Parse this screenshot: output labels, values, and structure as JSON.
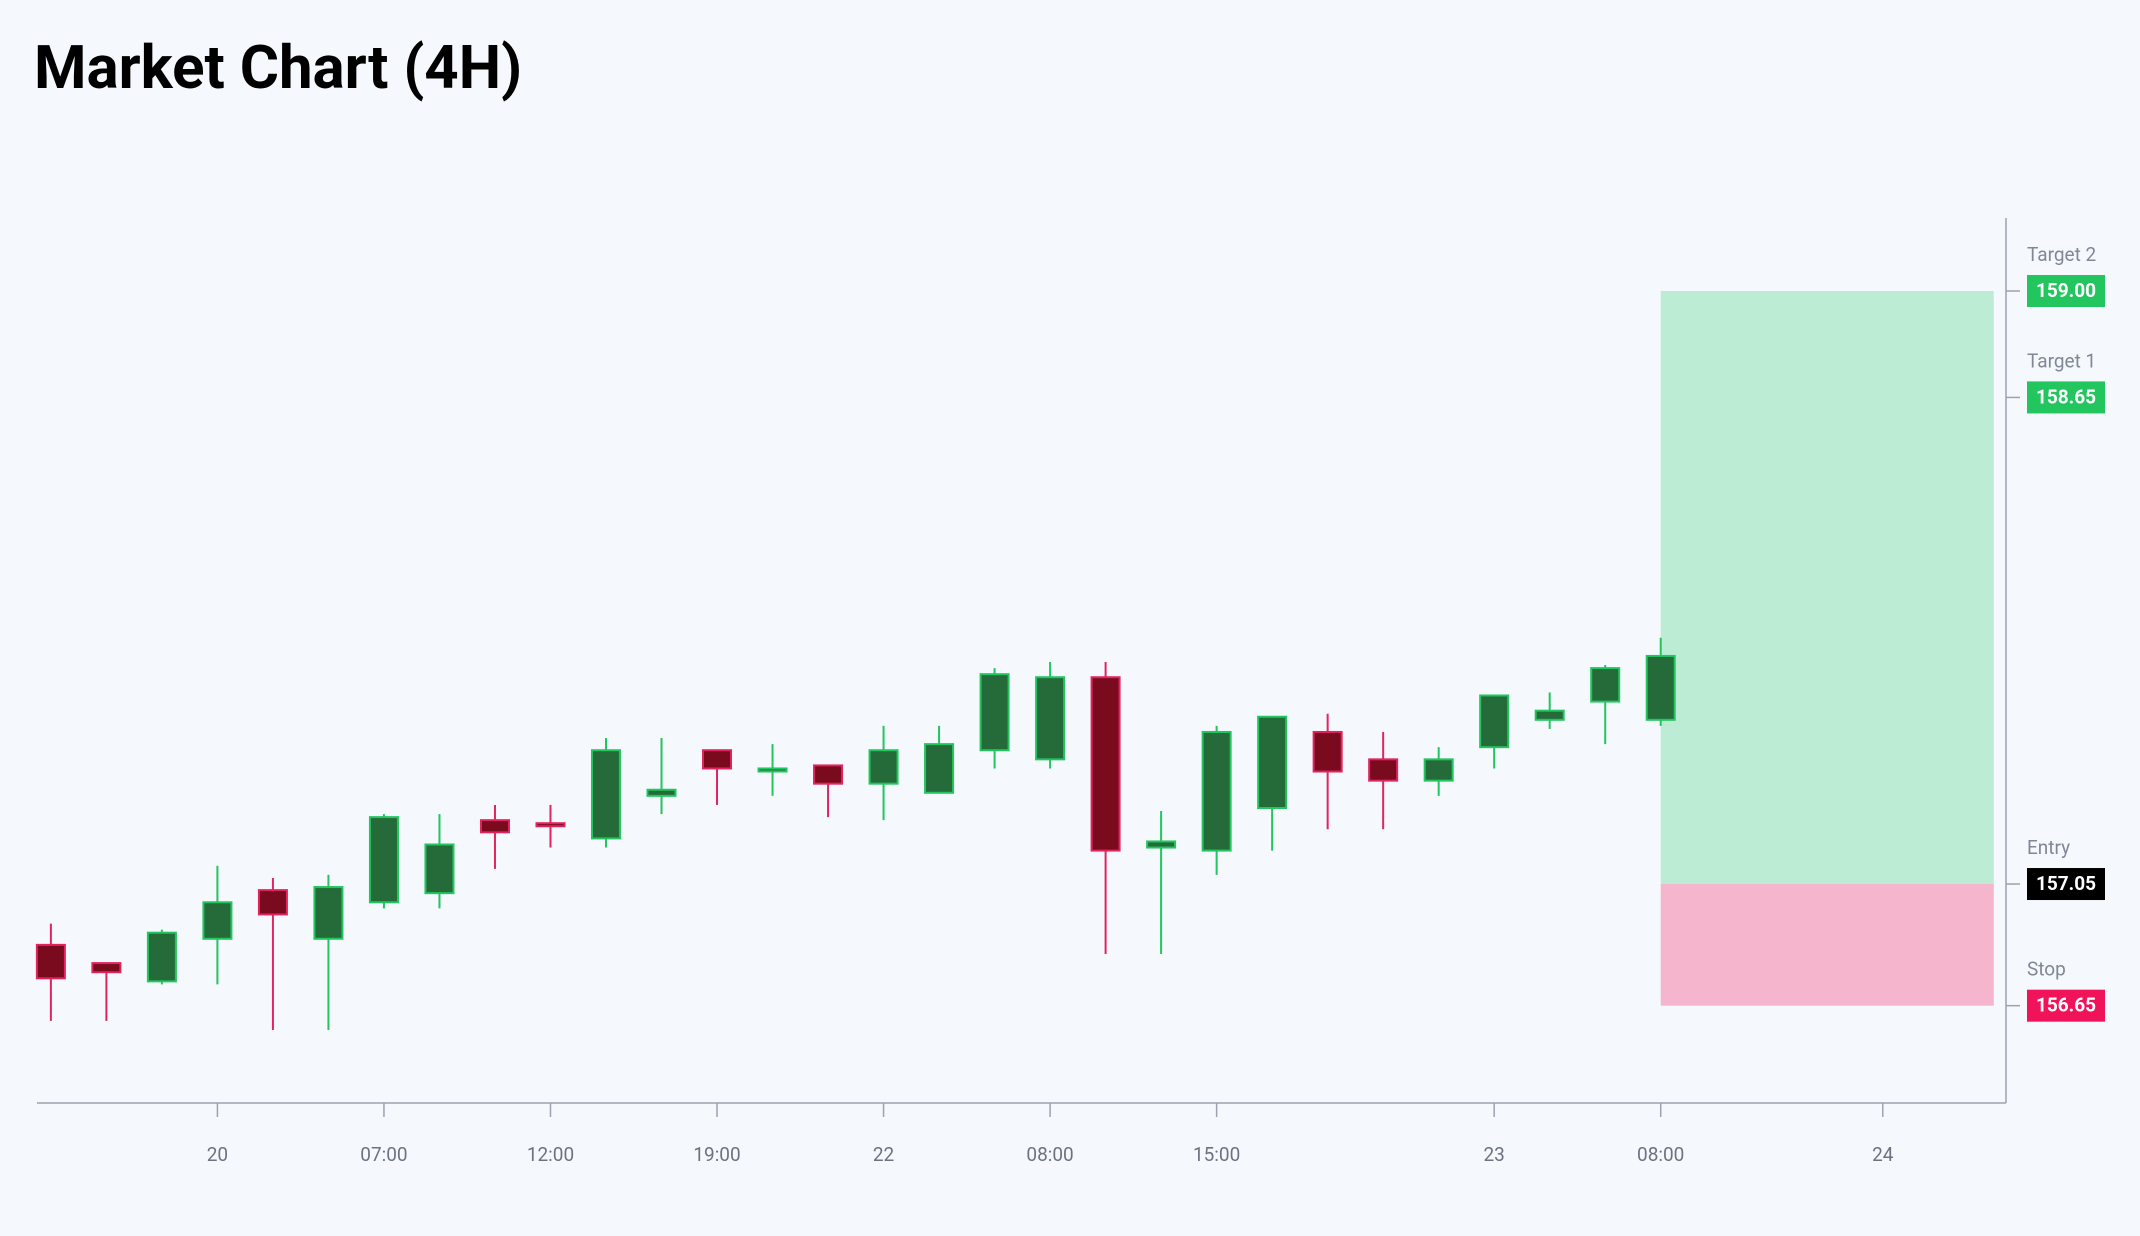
{
  "chart_data": {
    "type": "candlestick",
    "title": "Market Chart (4H)",
    "x": [
      0,
      1,
      2,
      3,
      4,
      5,
      6,
      7,
      8,
      9,
      10,
      11,
      12,
      13,
      14,
      15,
      16,
      17,
      18,
      19,
      20,
      21,
      22,
      23,
      24,
      25,
      26,
      27,
      28,
      29
    ],
    "open": [
      156.85,
      156.79,
      156.73,
      156.87,
      157.03,
      156.87,
      156.99,
      157.02,
      157.26,
      157.25,
      157.2,
      157.34,
      157.49,
      157.42,
      157.44,
      157.38,
      157.35,
      157.49,
      157.46,
      157.73,
      157.17,
      157.16,
      157.3,
      157.55,
      157.46,
      157.39,
      157.5,
      157.59,
      157.65,
      157.59
    ],
    "high": [
      156.92,
      156.79,
      156.9,
      157.11,
      157.07,
      157.08,
      157.28,
      157.28,
      157.31,
      157.31,
      157.53,
      157.53,
      157.49,
      157.51,
      157.44,
      157.57,
      157.57,
      157.76,
      157.78,
      157.78,
      157.29,
      157.57,
      157.6,
      157.61,
      157.55,
      157.5,
      157.67,
      157.68,
      157.77,
      157.86
    ],
    "low": [
      156.6,
      156.6,
      156.72,
      156.72,
      156.57,
      156.57,
      156.97,
      156.97,
      157.1,
      157.17,
      157.17,
      157.28,
      157.31,
      157.34,
      157.27,
      157.26,
      157.35,
      157.43,
      157.43,
      156.82,
      156.82,
      157.08,
      157.16,
      157.23,
      157.23,
      157.34,
      157.43,
      157.56,
      157.51,
      157.57
    ],
    "close": [
      156.74,
      156.76,
      156.89,
      156.99,
      156.95,
      157.04,
      157.27,
      157.18,
      157.22,
      157.24,
      157.49,
      157.36,
      157.43,
      157.43,
      157.38,
      157.49,
      157.51,
      157.74,
      157.73,
      157.16,
      157.19,
      157.55,
      157.6,
      157.42,
      157.39,
      157.46,
      157.67,
      157.62,
      157.76,
      157.8
    ],
    "up_color": "#22c55e",
    "up_fill": "#256b3a",
    "down_color": "#e0245e",
    "down_fill": "#7a0a1e",
    "xlim": [
      -0.25,
      35.22
    ],
    "ylim": [
      156.33,
      159.24
    ],
    "xticks": [
      {
        "value": 3,
        "label": "20"
      },
      {
        "value": 6,
        "label": "07:00"
      },
      {
        "value": 9,
        "label": "12:00"
      },
      {
        "value": 12,
        "label": "19:00"
      },
      {
        "value": 15,
        "label": "22"
      },
      {
        "value": 18,
        "label": "08:00"
      },
      {
        "value": 21,
        "label": "15:00"
      },
      {
        "value": 26,
        "label": "23"
      },
      {
        "value": 29,
        "label": "08:00"
      },
      {
        "value": 33,
        "label": "24"
      }
    ],
    "levels": [
      {
        "name": "Target 2",
        "value": 159.0,
        "label": "159.00",
        "color": "#22c55e"
      },
      {
        "name": "Target 1",
        "value": 158.65,
        "label": "158.65",
        "color": "#22c55e"
      },
      {
        "name": "Entry",
        "value": 157.05,
        "label": "157.05",
        "color": "#000000"
      },
      {
        "name": "Stop",
        "value": 156.65,
        "label": "156.65",
        "color": "#f0135a"
      }
    ],
    "position": {
      "x_start": 29,
      "x_end": 35,
      "profit_color": "#bcedd4",
      "loss_color": "#f5b5cc"
    }
  }
}
